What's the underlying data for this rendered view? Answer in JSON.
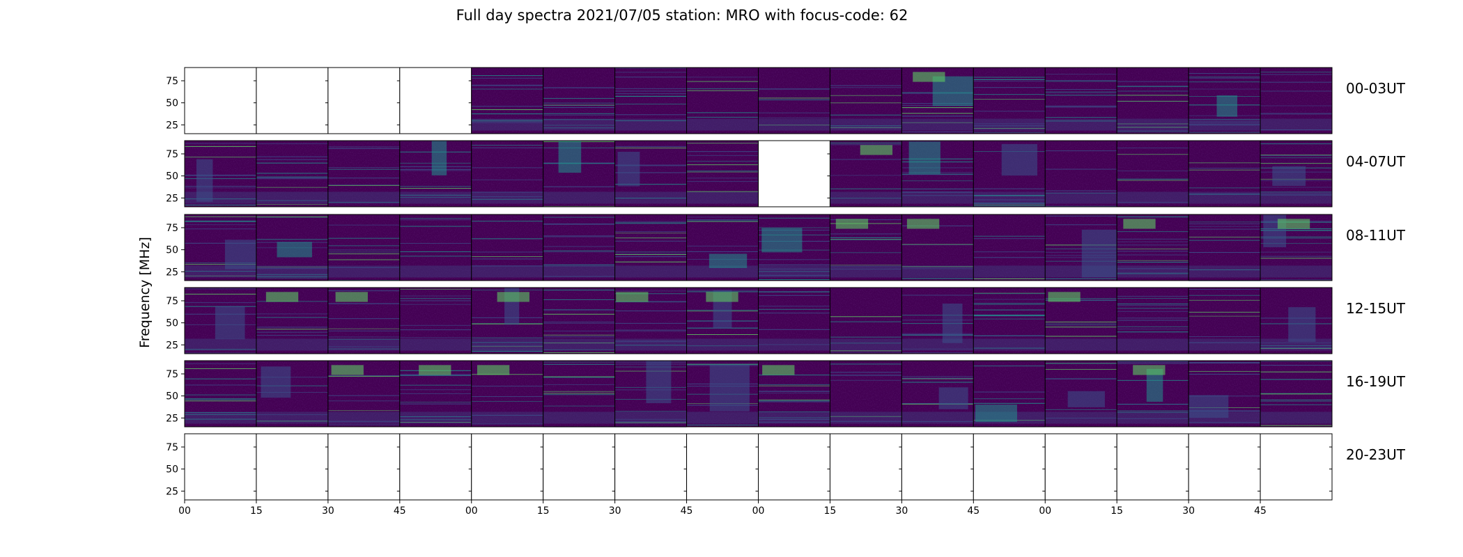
{
  "chart_data": {
    "type": "heatmap",
    "title": "Full day spectra 2021/07/05 station: MRO with focus-code: 62",
    "ylabel": "Frequency [MHz]",
    "xlabel": "",
    "yticks": [
      "25",
      "50",
      "75"
    ],
    "ylim": [
      15,
      90
    ],
    "xticks": [
      "00",
      "15",
      "30",
      "45",
      "00",
      "15",
      "30",
      "45",
      "00",
      "15",
      "30",
      "45",
      "00",
      "15",
      "30",
      "45"
    ],
    "colormap": "viridis",
    "minutes_per_panel": 15,
    "panels_per_row": 16,
    "rows": [
      {
        "label": "00-03UT",
        "has_data": [
          false,
          false,
          false,
          false,
          true,
          true,
          true,
          true,
          true,
          true,
          true,
          true,
          true,
          true,
          true,
          true
        ]
      },
      {
        "label": "04-07UT",
        "has_data": [
          true,
          true,
          true,
          true,
          true,
          true,
          true,
          true,
          false,
          true,
          true,
          true,
          true,
          true,
          true,
          true
        ]
      },
      {
        "label": "08-11UT",
        "has_data": [
          true,
          true,
          true,
          true,
          true,
          true,
          true,
          true,
          true,
          true,
          true,
          true,
          true,
          true,
          true,
          true
        ]
      },
      {
        "label": "12-15UT",
        "has_data": [
          true,
          true,
          true,
          true,
          true,
          true,
          true,
          true,
          true,
          true,
          true,
          true,
          true,
          true,
          true,
          true
        ]
      },
      {
        "label": "16-19UT",
        "has_data": [
          true,
          true,
          true,
          true,
          true,
          true,
          true,
          true,
          true,
          true,
          true,
          true,
          true,
          true,
          true,
          true
        ]
      },
      {
        "label": "20-23UT",
        "has_data": [
          false,
          false,
          false,
          false,
          false,
          false,
          false,
          false,
          false,
          false,
          false,
          false,
          false,
          false,
          false,
          false
        ]
      }
    ]
  },
  "colors": {
    "background": "#440154",
    "mid": "#3b528b",
    "cyan": "#21918c",
    "green": "#5ec962",
    "yellow": "#fde725"
  }
}
